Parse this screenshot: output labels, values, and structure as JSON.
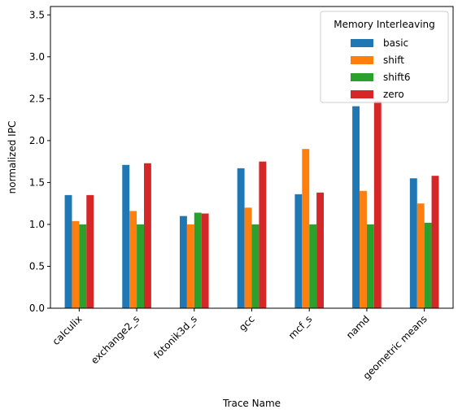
{
  "chart_data": {
    "type": "bar",
    "title": "",
    "xlabel": "Trace Name",
    "ylabel": "normalized IPC",
    "ylim": [
      0,
      3.6
    ],
    "yticks": [
      "0.0",
      "0.5",
      "1.0",
      "1.5",
      "2.0",
      "2.5",
      "3.0",
      "3.5"
    ],
    "categories": [
      "calculix",
      "exchange2_s",
      "fotonik3d_s",
      "gcc",
      "mcf_s",
      "namd",
      "geometric means"
    ],
    "legend": {
      "title": "Memory Interleaving",
      "position": "top-right"
    },
    "series": [
      {
        "name": "basic",
        "color": "#1f77b4",
        "values": [
          1.35,
          1.71,
          1.1,
          1.67,
          1.36,
          2.41,
          1.55
        ]
      },
      {
        "name": "shift",
        "color": "#ff7f0e",
        "values": [
          1.04,
          1.16,
          1.0,
          1.2,
          1.9,
          1.4,
          1.25
        ]
      },
      {
        "name": "shift6",
        "color": "#2ca02c",
        "values": [
          1.0,
          1.0,
          1.14,
          1.0,
          1.0,
          1.0,
          1.02
        ]
      },
      {
        "name": "zero",
        "color": "#d62728",
        "values": [
          1.35,
          1.73,
          1.13,
          1.75,
          1.38,
          2.47,
          1.58
        ]
      }
    ]
  }
}
